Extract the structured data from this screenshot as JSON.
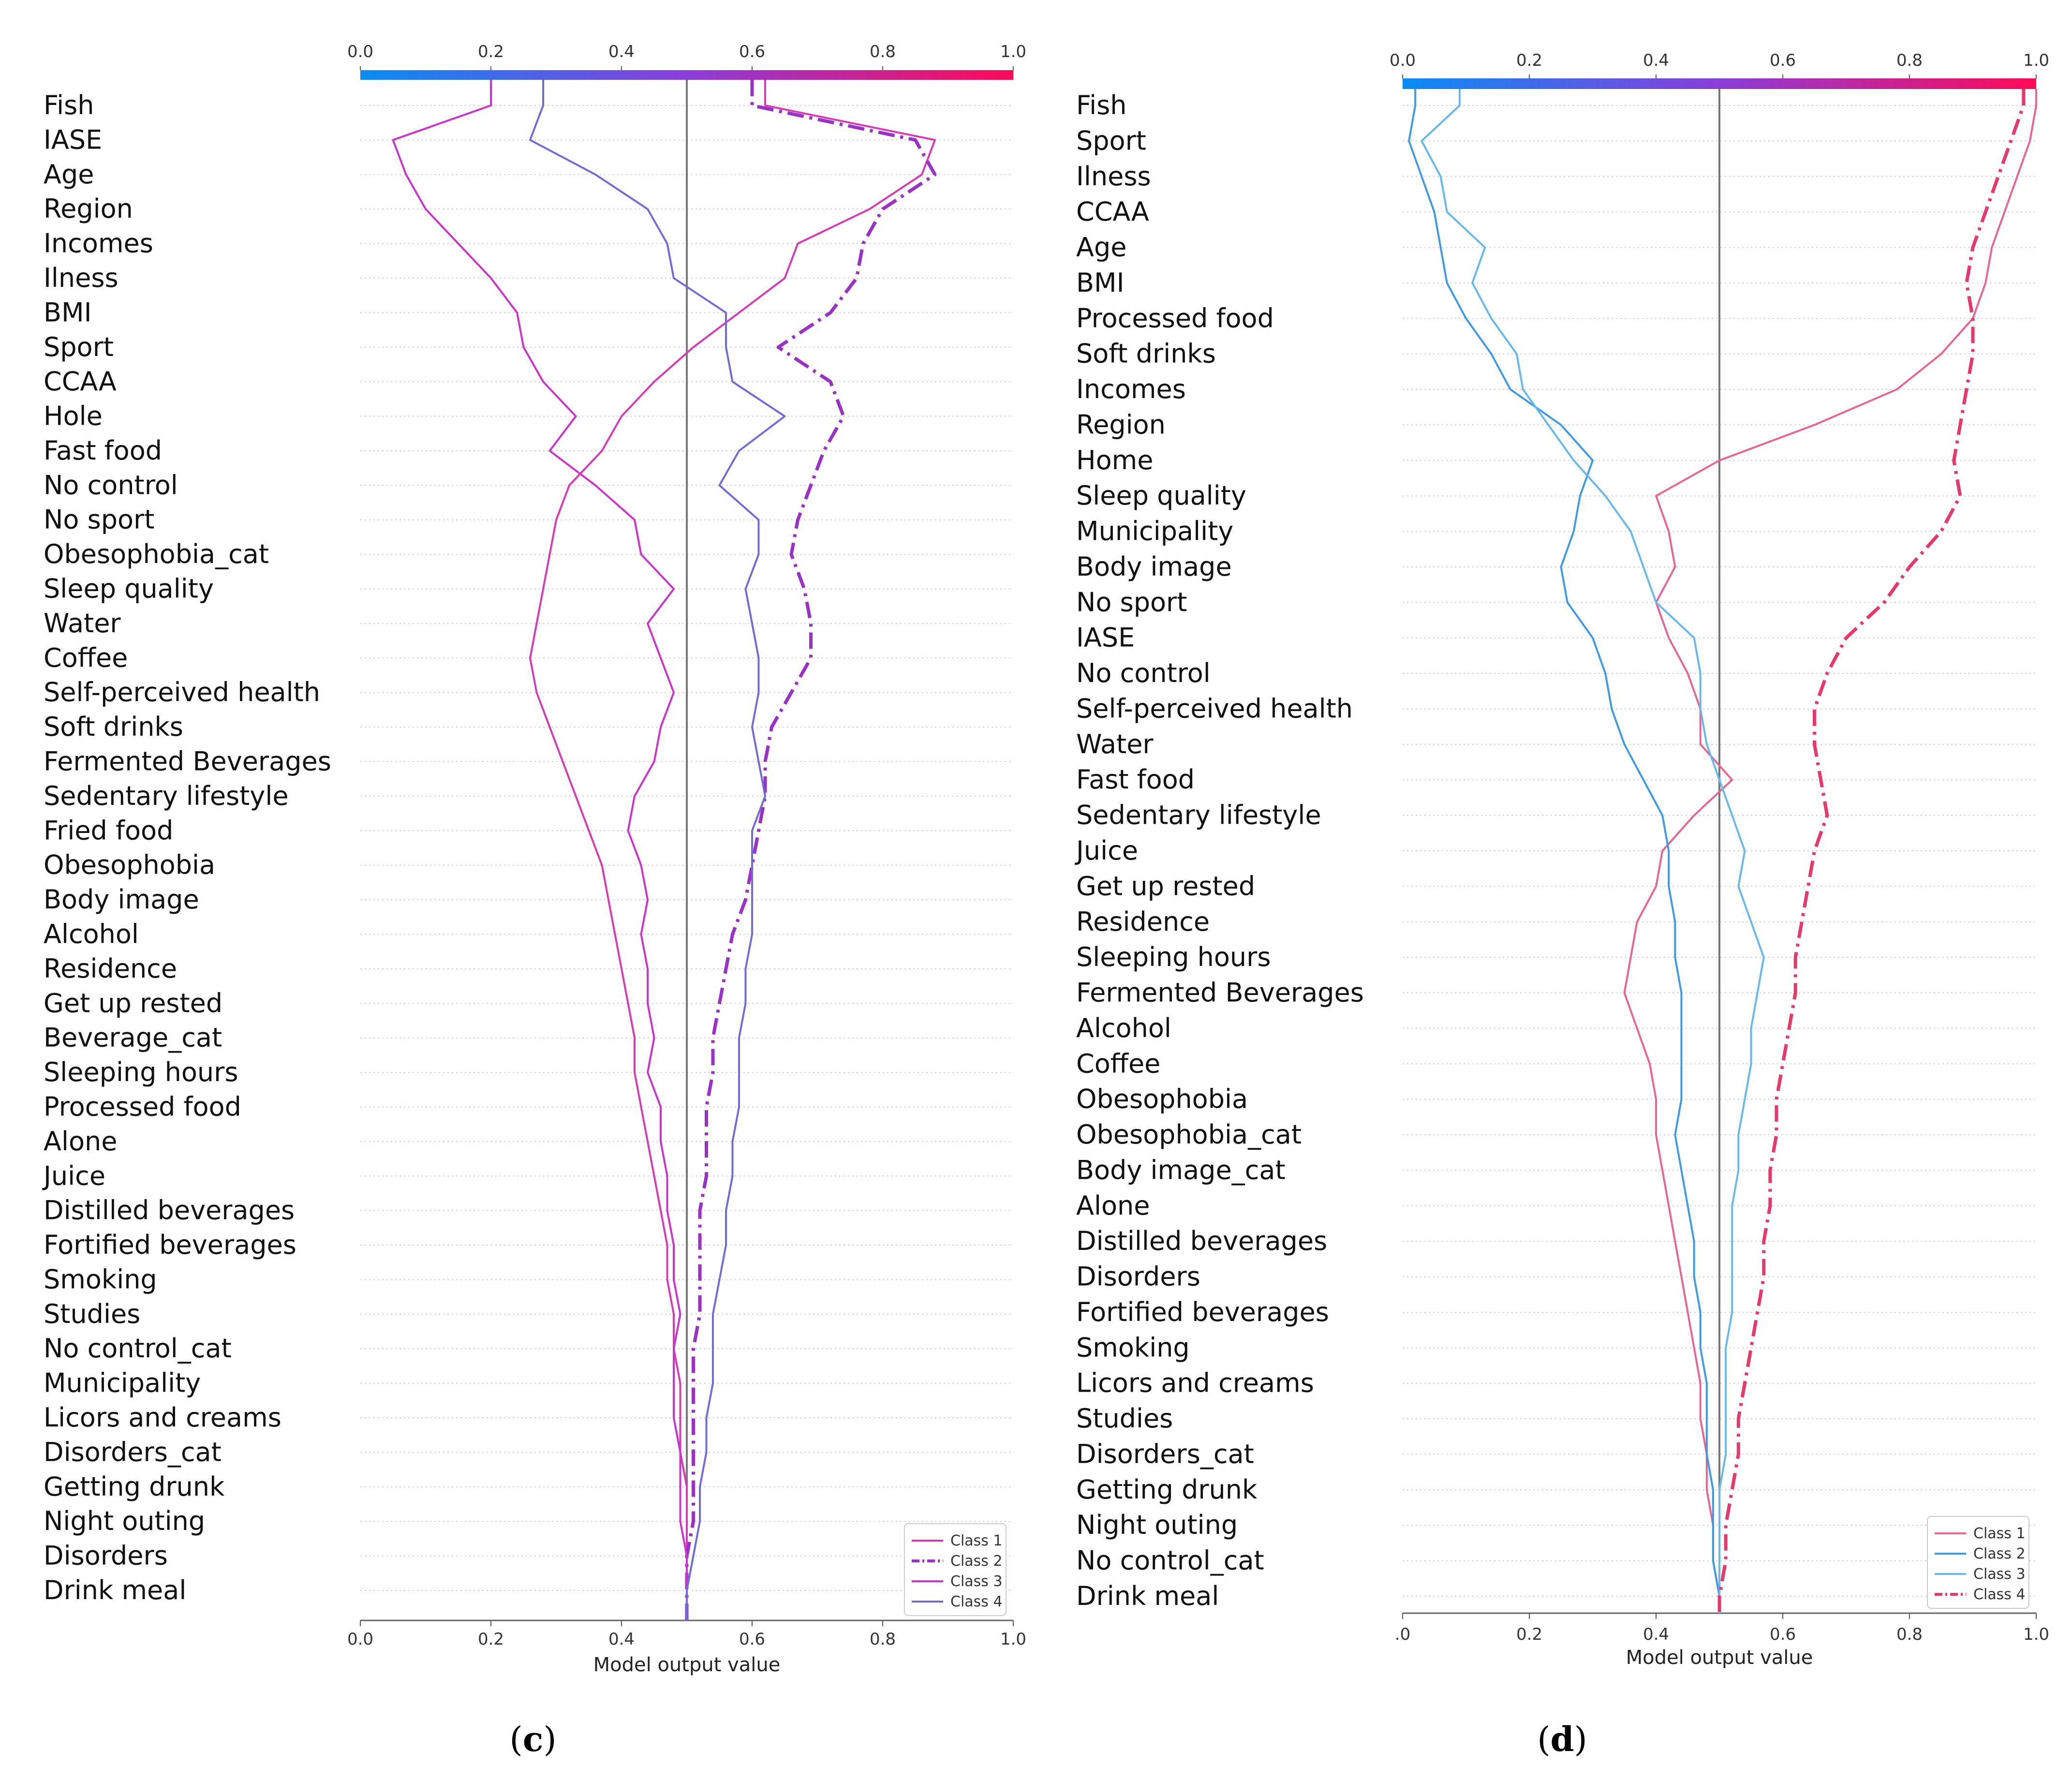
{
  "chart_data": [
    {
      "type": "line",
      "panel_label": "(c)",
      "panel_letter": "c",
      "chart_kind": "SHAP multi-output decision plot",
      "xlabel": "Model output value",
      "xlim": [
        0.0,
        1.0
      ],
      "x_ticks": [
        "0.0",
        "0.2",
        "0.4",
        "0.6",
        "0.8",
        "1.0"
      ],
      "base_value": 0.5,
      "colorbar_range": [
        0.0,
        1.0
      ],
      "legend_position": "bottom-right",
      "features": [
        "Fish",
        "IASE",
        "Age",
        "Region",
        "Incomes",
        "Ilness",
        "BMI",
        "Sport",
        "CCAA",
        "Hole",
        "Fast food",
        "No control",
        "No sport",
        "Obesophobia_cat",
        "Sleep quality",
        "Water",
        "Coffee",
        "Self-perceived health",
        "Soft drinks",
        "Fermented Beverages",
        "Sedentary lifestyle",
        "Fried food",
        "Obesophobia",
        "Body image",
        "Alcohol",
        "Residence",
        "Get up rested",
        "Beverage_cat",
        "Sleeping hours",
        "Processed food",
        "Alone",
        "Juice",
        "Distilled beverages",
        "Fortified beverages",
        "Smoking",
        "Studies",
        "No control_cat",
        "Municipality",
        "Licors and creams",
        "Disorders_cat",
        "Getting drunk",
        "Night outing",
        "Disorders",
        "Drink meal"
      ],
      "series": [
        {
          "name": "Class 1",
          "color": "#d63bb5",
          "dash": "solid",
          "values": [
            0.62,
            0.88,
            0.86,
            0.78,
            0.67,
            0.65,
            0.58,
            0.51,
            0.45,
            0.4,
            0.37,
            0.32,
            0.3,
            0.29,
            0.28,
            0.27,
            0.26,
            0.27,
            0.29,
            0.31,
            0.33,
            0.35,
            0.37,
            0.38,
            0.39,
            0.4,
            0.41,
            0.42,
            0.42,
            0.43,
            0.44,
            0.45,
            0.46,
            0.47,
            0.47,
            0.48,
            0.48,
            0.49,
            0.49,
            0.49,
            0.5,
            0.5,
            0.5,
            0.5
          ]
        },
        {
          "name": "Class 2",
          "color": "#9b30c9",
          "dash": "dashdot",
          "values": [
            0.6,
            0.85,
            0.88,
            0.8,
            0.77,
            0.76,
            0.72,
            0.64,
            0.72,
            0.74,
            0.71,
            0.69,
            0.67,
            0.66,
            0.68,
            0.69,
            0.69,
            0.66,
            0.63,
            0.62,
            0.62,
            0.61,
            0.6,
            0.59,
            0.57,
            0.56,
            0.55,
            0.54,
            0.54,
            0.53,
            0.53,
            0.53,
            0.52,
            0.52,
            0.52,
            0.52,
            0.51,
            0.51,
            0.51,
            0.51,
            0.51,
            0.51,
            0.5,
            0.5
          ]
        },
        {
          "name": "Class 3",
          "color": "#cc33cc",
          "dash": "solid",
          "values": [
            0.2,
            0.05,
            0.07,
            0.1,
            0.15,
            0.2,
            0.24,
            0.25,
            0.28,
            0.33,
            0.29,
            0.36,
            0.42,
            0.43,
            0.48,
            0.44,
            0.46,
            0.48,
            0.46,
            0.45,
            0.42,
            0.41,
            0.43,
            0.44,
            0.43,
            0.44,
            0.44,
            0.45,
            0.44,
            0.46,
            0.46,
            0.47,
            0.47,
            0.48,
            0.48,
            0.49,
            0.48,
            0.48,
            0.48,
            0.49,
            0.49,
            0.49,
            0.5,
            0.5
          ]
        },
        {
          "name": "Class 4",
          "color": "#6f6bd9",
          "dash": "solid",
          "values": [
            0.28,
            0.26,
            0.36,
            0.44,
            0.47,
            0.48,
            0.56,
            0.56,
            0.57,
            0.65,
            0.58,
            0.55,
            0.61,
            0.61,
            0.59,
            0.6,
            0.61,
            0.61,
            0.6,
            0.61,
            0.62,
            0.6,
            0.6,
            0.6,
            0.6,
            0.59,
            0.59,
            0.58,
            0.58,
            0.58,
            0.57,
            0.57,
            0.56,
            0.56,
            0.55,
            0.54,
            0.54,
            0.54,
            0.53,
            0.53,
            0.52,
            0.52,
            0.51,
            0.5
          ]
        }
      ]
    },
    {
      "type": "line",
      "panel_label": "(d)",
      "panel_letter": "d",
      "chart_kind": "SHAP multi-output decision plot",
      "xlabel": "Model output value",
      "xlim": [
        0.0,
        1.0
      ],
      "x_ticks": [
        ".0",
        "0.2",
        "0.4",
        "0.6",
        "0.8",
        "1.0"
      ],
      "top_ticks": [
        "0.0",
        "0.2",
        "0.4",
        "0.6",
        "0.8",
        "1.0"
      ],
      "base_value": 0.5,
      "colorbar_range": [
        0.0,
        1.0
      ],
      "legend_position": "bottom-right",
      "features": [
        "Fish",
        "Sport",
        "Ilness",
        "CCAA",
        "Age",
        "BMI",
        "Processed food",
        "Soft drinks",
        "Incomes",
        "Region",
        "Home",
        "Sleep quality",
        "Municipality",
        "Body image",
        "No sport",
        "IASE",
        "No control",
        "Self-perceived health",
        "Water",
        "Fast food",
        "Sedentary lifestyle",
        "Juice",
        "Get up rested",
        "Residence",
        "Sleeping hours",
        "Fermented Beverages",
        "Alcohol",
        "Coffee",
        "Obesophobia",
        "Obesophobia_cat",
        "Body image_cat",
        "Alone",
        "Distilled beverages",
        "Disorders",
        "Fortified beverages",
        "Smoking",
        "Licors and creams",
        "Studies",
        "Disorders_cat",
        "Getting drunk",
        "Night outing",
        "No control_cat",
        "Drink meal"
      ],
      "series": [
        {
          "name": "Class 1",
          "color": "#e8658f",
          "dash": "solid",
          "values": [
            1.0,
            0.99,
            0.97,
            0.95,
            0.93,
            0.92,
            0.9,
            0.85,
            0.78,
            0.65,
            0.5,
            0.4,
            0.42,
            0.43,
            0.4,
            0.42,
            0.45,
            0.47,
            0.47,
            0.52,
            0.46,
            0.41,
            0.4,
            0.37,
            0.36,
            0.35,
            0.37,
            0.39,
            0.4,
            0.4,
            0.41,
            0.42,
            0.43,
            0.44,
            0.45,
            0.46,
            0.47,
            0.47,
            0.48,
            0.48,
            0.49,
            0.49,
            0.5
          ]
        },
        {
          "name": "Class 2",
          "color": "#3d9be6",
          "dash": "solid",
          "values": [
            0.02,
            0.01,
            0.03,
            0.05,
            0.06,
            0.07,
            0.1,
            0.14,
            0.17,
            0.25,
            0.3,
            0.28,
            0.27,
            0.25,
            0.26,
            0.3,
            0.32,
            0.33,
            0.35,
            0.38,
            0.41,
            0.42,
            0.42,
            0.43,
            0.43,
            0.44,
            0.44,
            0.44,
            0.44,
            0.43,
            0.44,
            0.45,
            0.46,
            0.46,
            0.47,
            0.47,
            0.48,
            0.48,
            0.48,
            0.49,
            0.49,
            0.49,
            0.5
          ]
        },
        {
          "name": "Class 3",
          "color": "#66b8ee",
          "dash": "solid",
          "values": [
            0.09,
            0.03,
            0.06,
            0.07,
            0.13,
            0.11,
            0.14,
            0.18,
            0.19,
            0.23,
            0.27,
            0.32,
            0.36,
            0.38,
            0.4,
            0.46,
            0.47,
            0.47,
            0.48,
            0.5,
            0.52,
            0.54,
            0.53,
            0.55,
            0.57,
            0.56,
            0.55,
            0.55,
            0.54,
            0.53,
            0.53,
            0.52,
            0.52,
            0.52,
            0.52,
            0.51,
            0.51,
            0.51,
            0.51,
            0.5,
            0.5,
            0.5,
            0.5
          ]
        },
        {
          "name": "Class 4",
          "color": "#e8386b",
          "dash": "dashdot",
          "values": [
            0.98,
            0.96,
            0.94,
            0.92,
            0.9,
            0.89,
            0.9,
            0.9,
            0.89,
            0.88,
            0.87,
            0.88,
            0.85,
            0.8,
            0.76,
            0.7,
            0.67,
            0.65,
            0.65,
            0.66,
            0.67,
            0.65,
            0.64,
            0.63,
            0.62,
            0.62,
            0.61,
            0.6,
            0.59,
            0.59,
            0.58,
            0.58,
            0.57,
            0.57,
            0.56,
            0.55,
            0.54,
            0.53,
            0.53,
            0.52,
            0.51,
            0.51,
            0.5
          ]
        }
      ]
    }
  ]
}
